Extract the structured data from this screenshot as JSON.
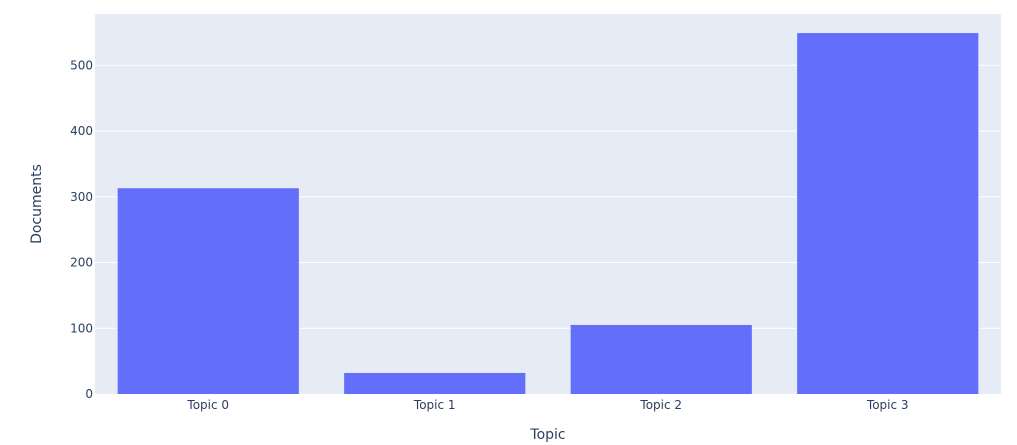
{
  "chart_data": {
    "type": "bar",
    "categories": [
      "Topic 0",
      "Topic 1",
      "Topic 2",
      "Topic 3"
    ],
    "values": [
      313,
      32,
      105,
      549
    ],
    "xlabel": "Topic",
    "ylabel": "Documents",
    "ylim": [
      0,
      578
    ],
    "yticks": [
      0,
      100,
      200,
      300,
      400,
      500
    ],
    "grid": true,
    "legend": "none",
    "colors": {
      "bar": "#636efa",
      "plot_background": "#e5ecf6",
      "grid": "#ffffff",
      "text": "#2a3f5f"
    }
  }
}
